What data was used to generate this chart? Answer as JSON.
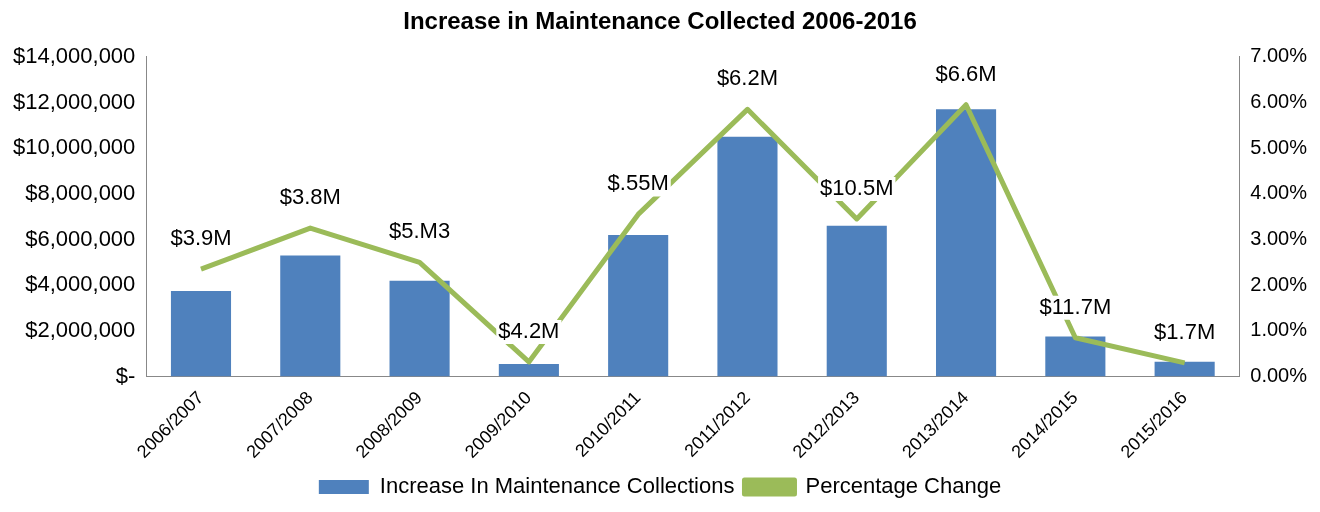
{
  "chart_data": {
    "type": "bar",
    "title": "Increase in Maintenance Collected 2006-2016",
    "categories": [
      "2006/2007",
      "2007/2008",
      "2008/2009",
      "2009/2010",
      "2010/2011",
      "2011/2012",
      "2012/2013",
      "2013/2014",
      "2014/2015",
      "2015/2016"
    ],
    "series": [
      {
        "name": "Increase In Maintenance Collections",
        "type": "bar",
        "color": "#4f81bd",
        "values": [
          3750000,
          5300000,
          4200000,
          550000,
          6200000,
          10500000,
          6600000,
          11700000,
          1750000,
          650000
        ]
      },
      {
        "name": "Percentage Change",
        "type": "line",
        "axis": "y2",
        "color": "#9bbb59",
        "values": [
          2.35,
          3.25,
          2.5,
          0.32,
          3.55,
          5.85,
          3.45,
          5.95,
          0.85,
          0.3
        ]
      }
    ],
    "annotations": [
      "$3.9M",
      "$3.8M",
      "$5.M3",
      "$4.2M",
      "$.55M",
      "$6.2M",
      "$10.5M",
      "$6.6M",
      "$11.7M",
      "$1.7M"
    ],
    "ylim": [
      0,
      14000000
    ],
    "yticks": [
      {
        "value": 0,
        "label": "$-"
      },
      {
        "value": 2000000,
        "label": "$2,000,000"
      },
      {
        "value": 4000000,
        "label": "$4,000,000"
      },
      {
        "value": 6000000,
        "label": "$6,000,000"
      },
      {
        "value": 8000000,
        "label": "$8,000,000"
      },
      {
        "value": 10000000,
        "label": "$10,000,000"
      },
      {
        "value": 12000000,
        "label": "$12,000,000"
      },
      {
        "value": 14000000,
        "label": "$14,000,000"
      }
    ],
    "y2lim": [
      0,
      7
    ],
    "y2ticks": [
      {
        "value": 0,
        "label": "0.00%"
      },
      {
        "value": 1,
        "label": "1.00%"
      },
      {
        "value": 2,
        "label": "2.00%"
      },
      {
        "value": 3,
        "label": "3.00%"
      },
      {
        "value": 4,
        "label": "4.00%"
      },
      {
        "value": 5,
        "label": "5.00%"
      },
      {
        "value": 6,
        "label": "6.00%"
      },
      {
        "value": 7,
        "label": "7.00%"
      }
    ],
    "grid": false,
    "legend": "bottom",
    "marker": "none"
  }
}
